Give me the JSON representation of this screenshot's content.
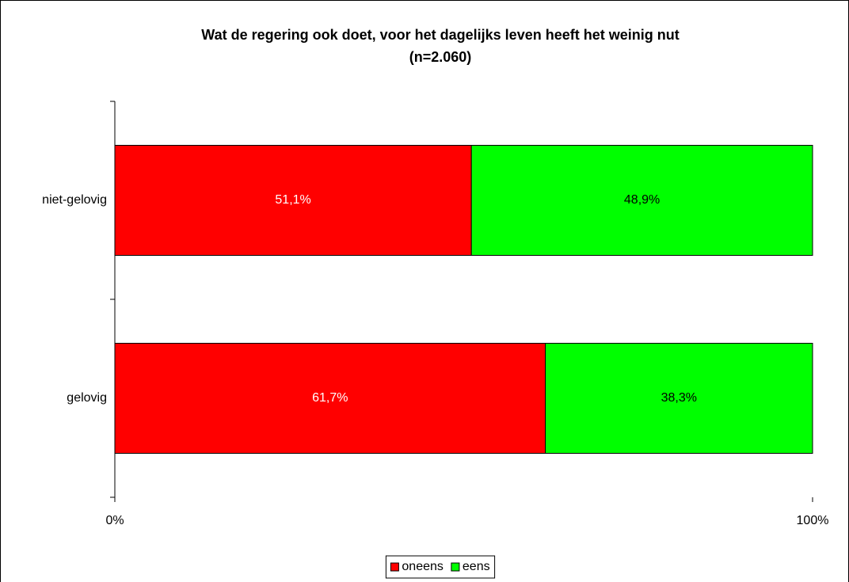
{
  "chart_data": {
    "type": "bar",
    "orientation": "horizontal",
    "stacked": true,
    "title": "Wat de regering ook doet, voor het dagelijks leven heeft het weinig nut",
    "subtitle": "(n=2.060)",
    "categories": [
      "niet-gelovig",
      "gelovig"
    ],
    "series": [
      {
        "name": "oneens",
        "color": "#ff0000",
        "label_color": "#ffffff",
        "values": [
          51.1,
          61.7
        ],
        "value_labels": [
          "51,1%",
          "61,7%"
        ]
      },
      {
        "name": "eens",
        "color": "#00ff00",
        "label_color": "#000000",
        "values": [
          48.9,
          38.3
        ],
        "value_labels": [
          "48,9%",
          "38,3%"
        ]
      }
    ],
    "xlim": [
      0,
      100
    ],
    "xticks": [
      {
        "value": 0,
        "label": "0%"
      },
      {
        "value": 100,
        "label": "100%"
      }
    ],
    "legend": "bottom"
  }
}
